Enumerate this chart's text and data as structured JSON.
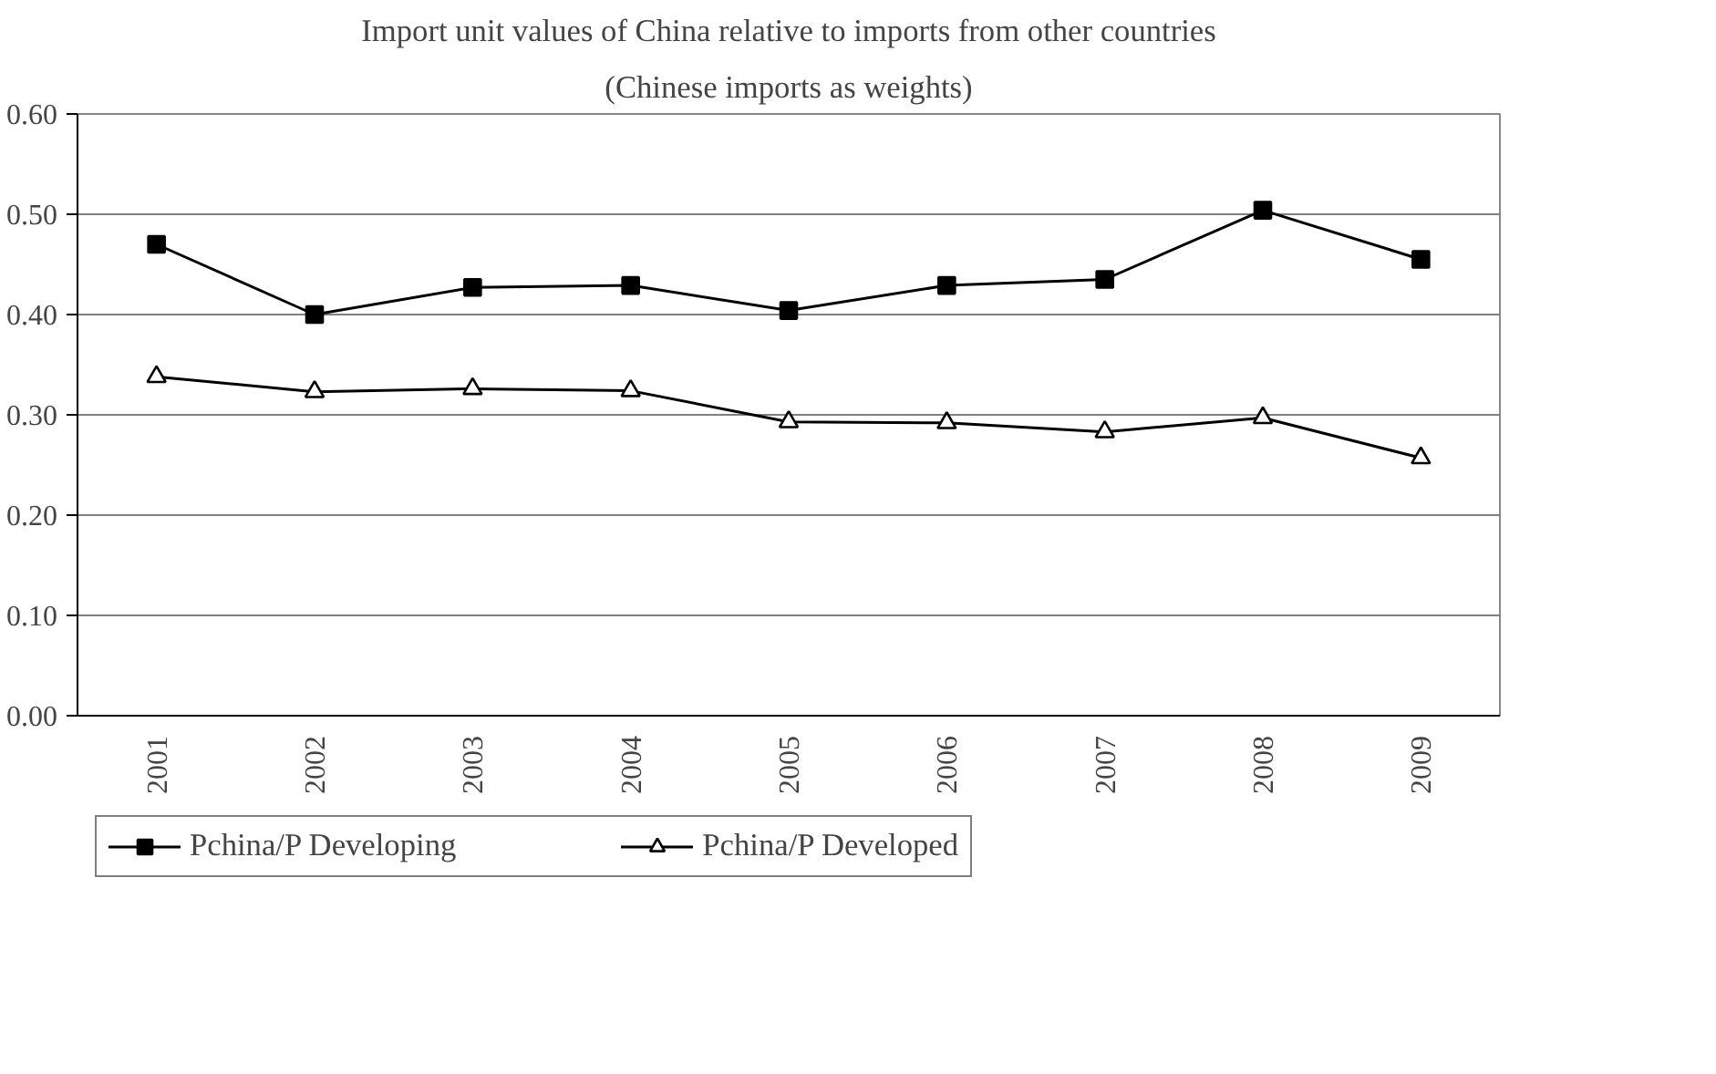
{
  "chart_data": {
    "type": "line",
    "title": "Import unit values of China relative to imports from other countries",
    "subtitle": "(Chinese imports as weights)",
    "categories": [
      "2001",
      "2002",
      "2003",
      "2004",
      "2005",
      "2006",
      "2007",
      "2008",
      "2009"
    ],
    "series": [
      {
        "name": "Pchina/P Developing",
        "color": "#000000",
        "marker": "square",
        "values": [
          0.47,
          0.4,
          0.427,
          0.429,
          0.404,
          0.429,
          0.435,
          0.504,
          0.455
        ]
      },
      {
        "name": "Pchina/P Developed",
        "color": "#000000",
        "marker": "triangle",
        "values": [
          0.338,
          0.323,
          0.326,
          0.324,
          0.293,
          0.292,
          0.283,
          0.297,
          0.257
        ]
      }
    ],
    "ylim": [
      0,
      0.6
    ],
    "yticks": [
      {
        "value": 0,
        "label": "0.00"
      },
      {
        "value": 0.1,
        "label": "0.10"
      },
      {
        "value": 0.2,
        "label": "0.20"
      },
      {
        "value": 0.3,
        "label": "0.30"
      },
      {
        "value": 0.4,
        "label": "0.40"
      },
      {
        "value": 0.5,
        "label": "0.50"
      },
      {
        "value": 0.6,
        "label": "0.60"
      }
    ],
    "grid": "y",
    "legend": "bottom",
    "line_style": "solid"
  }
}
